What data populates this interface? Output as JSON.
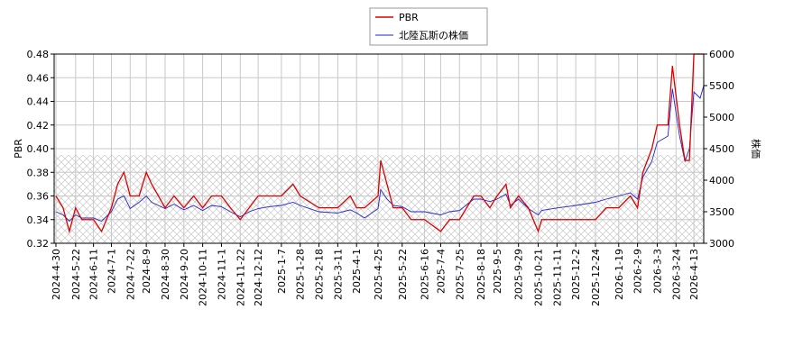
{
  "chart_data": {
    "type": "line",
    "xlabel": null,
    "ylabel": "PBR",
    "y2label": "株価",
    "x": [
      "2024-4-30",
      "2024-5-8",
      "2024-5-15",
      "2024-5-22",
      "2024-5-29",
      "2024-6-11",
      "2024-6-20",
      "2024-7-1",
      "2024-7-8",
      "2024-7-15",
      "2024-7-22",
      "2024-8-1",
      "2024-8-9",
      "2024-8-15",
      "2024-8-30",
      "2024-9-9",
      "2024-9-20",
      "2024-10-1",
      "2024-10-11",
      "2024-10-21",
      "2024-11-1",
      "2024-11-11",
      "2024-11-22",
      "2024-12-2",
      "2024-12-12",
      "2024-12-24",
      "2025-1-7",
      "2025-1-20",
      "2025-1-28",
      "2025-2-18",
      "2025-3-11",
      "2025-3-25",
      "2025-4-1",
      "2025-4-10",
      "2025-4-25",
      "2025-4-28",
      "2025-5-5",
      "2025-5-12",
      "2025-5-22",
      "2025-6-1",
      "2025-6-16",
      "2025-7-4",
      "2025-7-14",
      "2025-7-25",
      "2025-8-10",
      "2025-8-18",
      "2025-8-28",
      "2025-9-5",
      "2025-9-15",
      "2025-9-20",
      "2025-9-29",
      "2025-10-10",
      "2025-10-21",
      "2025-10-25",
      "2025-11-11",
      "2025-12-2",
      "2025-12-24",
      "2026-1-5",
      "2026-1-19",
      "2026-2-1",
      "2026-2-9",
      "2026-2-15",
      "2026-2-25",
      "2026-3-3",
      "2026-3-15",
      "2026-3-20",
      "2026-3-28",
      "2026-4-3",
      "2026-4-8",
      "2026-4-13",
      "2026-4-20",
      "2026-4-24"
    ],
    "series": [
      {
        "name": "PBR",
        "color": "#dd0000",
        "axis": "y",
        "values": [
          0.36,
          0.35,
          0.33,
          0.35,
          0.34,
          0.34,
          0.33,
          0.35,
          0.37,
          0.38,
          0.36,
          0.36,
          0.38,
          0.37,
          0.35,
          0.36,
          0.35,
          0.36,
          0.35,
          0.36,
          0.36,
          0.35,
          0.34,
          0.35,
          0.36,
          0.36,
          0.36,
          0.37,
          0.36,
          0.35,
          0.35,
          0.36,
          0.35,
          0.35,
          0.36,
          0.39,
          0.37,
          0.35,
          0.35,
          0.34,
          0.34,
          0.33,
          0.34,
          0.34,
          0.36,
          0.36,
          0.35,
          0.36,
          0.37,
          0.35,
          0.36,
          0.35,
          0.33,
          0.34,
          0.34,
          0.34,
          0.34,
          0.35,
          0.35,
          0.36,
          0.35,
          0.38,
          0.4,
          0.42,
          0.42,
          0.47,
          0.42,
          0.39,
          0.39,
          0.48,
          0.48,
          0.48
        ]
      },
      {
        "name": "北陸瓦斯の株価",
        "color": "#2222cc",
        "axis": "y2",
        "values": [
          3500,
          3450,
          3350,
          3450,
          3400,
          3400,
          3350,
          3500,
          3700,
          3750,
          3550,
          3650,
          3750,
          3650,
          3550,
          3620,
          3530,
          3600,
          3520,
          3600,
          3580,
          3500,
          3420,
          3500,
          3550,
          3580,
          3600,
          3650,
          3600,
          3500,
          3480,
          3530,
          3480,
          3400,
          3550,
          3850,
          3700,
          3600,
          3580,
          3500,
          3500,
          3450,
          3500,
          3520,
          3700,
          3700,
          3660,
          3700,
          3780,
          3600,
          3700,
          3550,
          3450,
          3520,
          3560,
          3600,
          3650,
          3700,
          3750,
          3800,
          3700,
          4050,
          4300,
          4600,
          4700,
          5450,
          4700,
          4300,
          4500,
          5400,
          5300,
          5500
        ]
      }
    ],
    "xlim": [
      "2024-4-28",
      "2026-4-24"
    ],
    "xticks": [
      "2024-4-30",
      "2024-5-22",
      "2024-6-11",
      "2024-7-1",
      "2024-7-22",
      "2024-8-9",
      "2024-8-30",
      "2024-9-20",
      "2024-10-11",
      "2024-11-1",
      "2024-11-22",
      "2024-12-12",
      "2025-1-7",
      "2025-1-28",
      "2025-2-18",
      "2025-3-11",
      "2025-4-1",
      "2025-4-25",
      "2025-5-22",
      "2025-6-16",
      "2025-7-4",
      "2025-7-25",
      "2025-8-18",
      "2025-9-5",
      "2025-9-29",
      "2025-10-21",
      "2025-11-11",
      "2025-12-2",
      "2025-12-24",
      "2026-1-19",
      "2026-2-9",
      "2026-3-3",
      "2026-3-24",
      "2026-4-13"
    ],
    "ylim": [
      0.32,
      0.48
    ],
    "yticks": [
      {
        "value": 0.32,
        "label": "0.32"
      },
      {
        "value": 0.34,
        "label": "0.34"
      },
      {
        "value": 0.36,
        "label": "0.36"
      },
      {
        "value": 0.38,
        "label": "0.38"
      },
      {
        "value": 0.4,
        "label": "0.40"
      },
      {
        "value": 0.42,
        "label": "0.42"
      },
      {
        "value": 0.44,
        "label": "0.44"
      },
      {
        "value": 0.46,
        "label": "0.46"
      },
      {
        "value": 0.48,
        "label": "0.48"
      }
    ],
    "y2lim": [
      3000,
      6000
    ],
    "y2ticks": [
      3000,
      3500,
      4000,
      4500,
      5000,
      5500,
      6000
    ],
    "grid": true
  }
}
